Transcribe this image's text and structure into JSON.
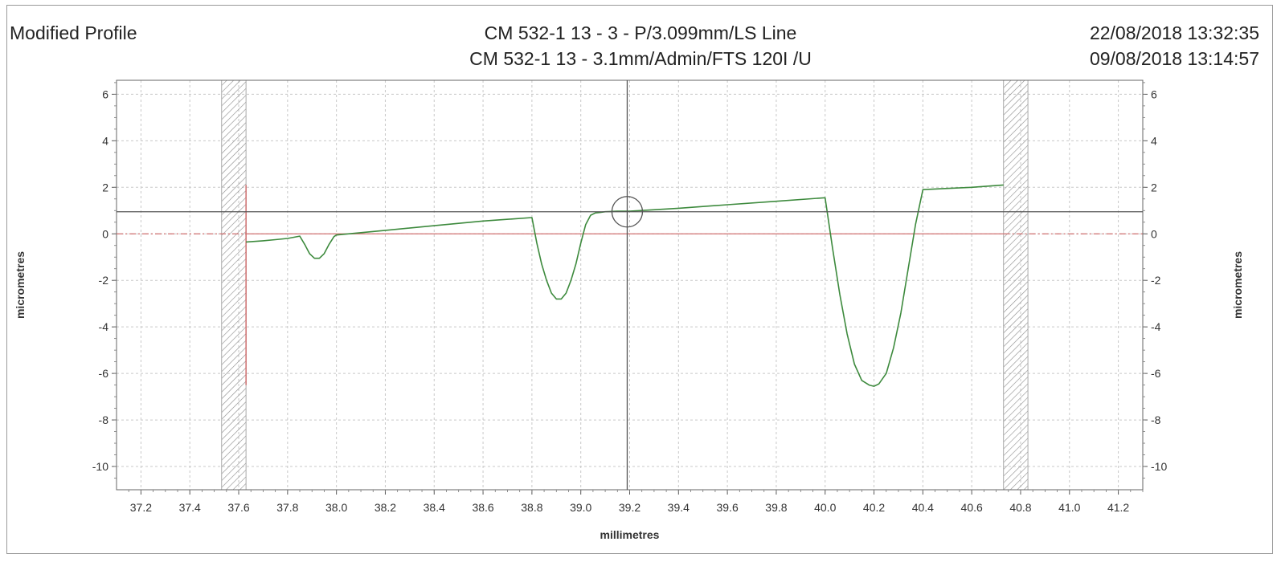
{
  "header": {
    "title": "Modified Profile",
    "line1": "CM 532-1 13 - 3 - P/3.099mm/LS Line",
    "line2": "CM 532-1 13 - 3.1mm/Admin/FTS 120I /U",
    "date1": "22/08/2018 13:32:35",
    "date2": "09/08/2018 13:14:57"
  },
  "colors": {
    "profile": "#3d8a3d",
    "reference": "#d07070",
    "cursor": "#555555",
    "grid": "#c8c8c8",
    "hatch": "#8a8a8a"
  },
  "chart_data": {
    "type": "line",
    "xlabel": "millimetres",
    "ylabel": "micrometres",
    "xlim": [
      37.1,
      41.3
    ],
    "ylim": [
      -11,
      6.6
    ],
    "x_ticks": [
      37.2,
      37.4,
      37.6,
      37.8,
      38.0,
      38.2,
      38.4,
      38.6,
      38.8,
      39.0,
      39.2,
      39.4,
      39.6,
      39.8,
      40.0,
      40.2,
      40.4,
      40.6,
      40.8,
      41.0,
      41.2
    ],
    "x_tick_labels": [
      "37.2",
      "37.4",
      "37.6",
      "37.8",
      "38.0",
      "38.2",
      "38.4",
      "38.6",
      "38.8",
      "39.0",
      "39.2",
      "39.4",
      "39.6",
      "39.8",
      "40.0",
      "40.2",
      "40.4",
      "40.6",
      "40.8",
      "41.0",
      "41.2"
    ],
    "y_ticks": [
      6,
      4,
      2,
      0,
      -2,
      -4,
      -6,
      -8,
      -10
    ],
    "y_tick_labels": [
      "6",
      "4",
      "2",
      "0",
      "-2",
      "-4",
      "-6",
      "-8",
      "-10"
    ],
    "grid": true,
    "series": [
      {
        "x": [
          37.63,
          37.7,
          37.75,
          37.8,
          37.85,
          37.87,
          37.89,
          37.91,
          37.93,
          37.95,
          37.97,
          37.99,
          38.0,
          38.2,
          38.4,
          38.6,
          38.8,
          38.82,
          38.84,
          38.86,
          38.88,
          38.9,
          38.92,
          38.94,
          38.96,
          38.98,
          39.0,
          39.02,
          39.04,
          39.06,
          39.08,
          39.1,
          39.15,
          39.2,
          39.4,
          39.6,
          39.8,
          40.0,
          40.03,
          40.06,
          40.09,
          40.12,
          40.15,
          40.18,
          40.2,
          40.22,
          40.25,
          40.28,
          40.31,
          40.34,
          40.37,
          40.4,
          40.5,
          40.6,
          40.73
        ],
        "y": [
          -0.35,
          -0.3,
          -0.25,
          -0.2,
          -0.1,
          -0.45,
          -0.85,
          -1.05,
          -1.05,
          -0.85,
          -0.45,
          -0.12,
          -0.05,
          0.15,
          0.35,
          0.55,
          0.7,
          -0.4,
          -1.3,
          -2.0,
          -2.55,
          -2.8,
          -2.8,
          -2.55,
          -2.0,
          -1.3,
          -0.4,
          0.4,
          0.8,
          0.9,
          0.92,
          0.95,
          0.97,
          0.97,
          1.1,
          1.25,
          1.4,
          1.55,
          -0.6,
          -2.6,
          -4.3,
          -5.6,
          -6.3,
          -6.5,
          -6.55,
          -6.45,
          -6.0,
          -4.9,
          -3.4,
          -1.5,
          0.4,
          1.9,
          1.95,
          2.0,
          2.1
        ]
      }
    ],
    "reference_line": {
      "y": 0,
      "x_start": 37.63,
      "x_end": 40.73
    },
    "cursor": {
      "x": 39.19,
      "y": 0.95
    },
    "exclusion_zones": [
      [
        37.53,
        37.63
      ],
      [
        40.73,
        40.83
      ]
    ],
    "eval_start_marker": {
      "x": 37.63,
      "y_top": 2.1,
      "y_bottom": -6.5
    }
  }
}
